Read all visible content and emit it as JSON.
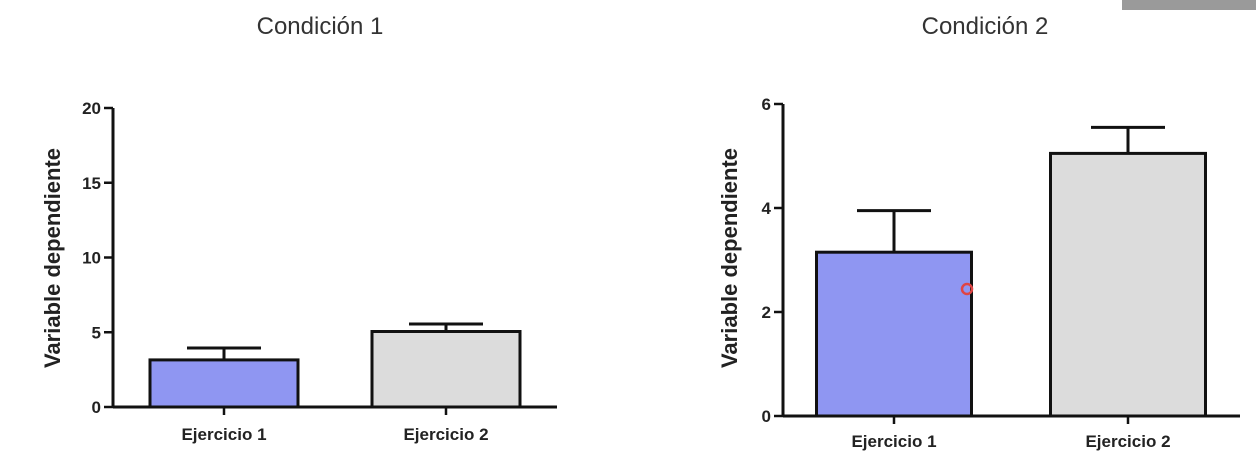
{
  "chart_data": [
    {
      "type": "bar",
      "title": "Condición 1",
      "xlabel": "",
      "ylabel": "Variable dependiente",
      "categories": [
        "Ejercicio 1",
        "Ejercicio 2"
      ],
      "values": [
        3.15,
        5.05
      ],
      "error": [
        0.8,
        0.5
      ],
      "colors": [
        "#8f96f2",
        "#dcdcdc"
      ],
      "ylim": [
        0,
        20
      ],
      "yticks": [
        0,
        5,
        10,
        15,
        20
      ],
      "grid": false,
      "legend": "none"
    },
    {
      "type": "bar",
      "title": "Condición 2",
      "xlabel": "",
      "ylabel": "Variable dependiente",
      "categories": [
        "Ejercicio 1",
        "Ejercicio 2"
      ],
      "values": [
        3.15,
        5.05
      ],
      "error": [
        0.8,
        0.5
      ],
      "colors": [
        "#8f96f2",
        "#dcdcdc"
      ],
      "ylim": [
        0,
        6
      ],
      "yticks": [
        0,
        2,
        4,
        6
      ],
      "grid": false,
      "legend": "none"
    }
  ]
}
